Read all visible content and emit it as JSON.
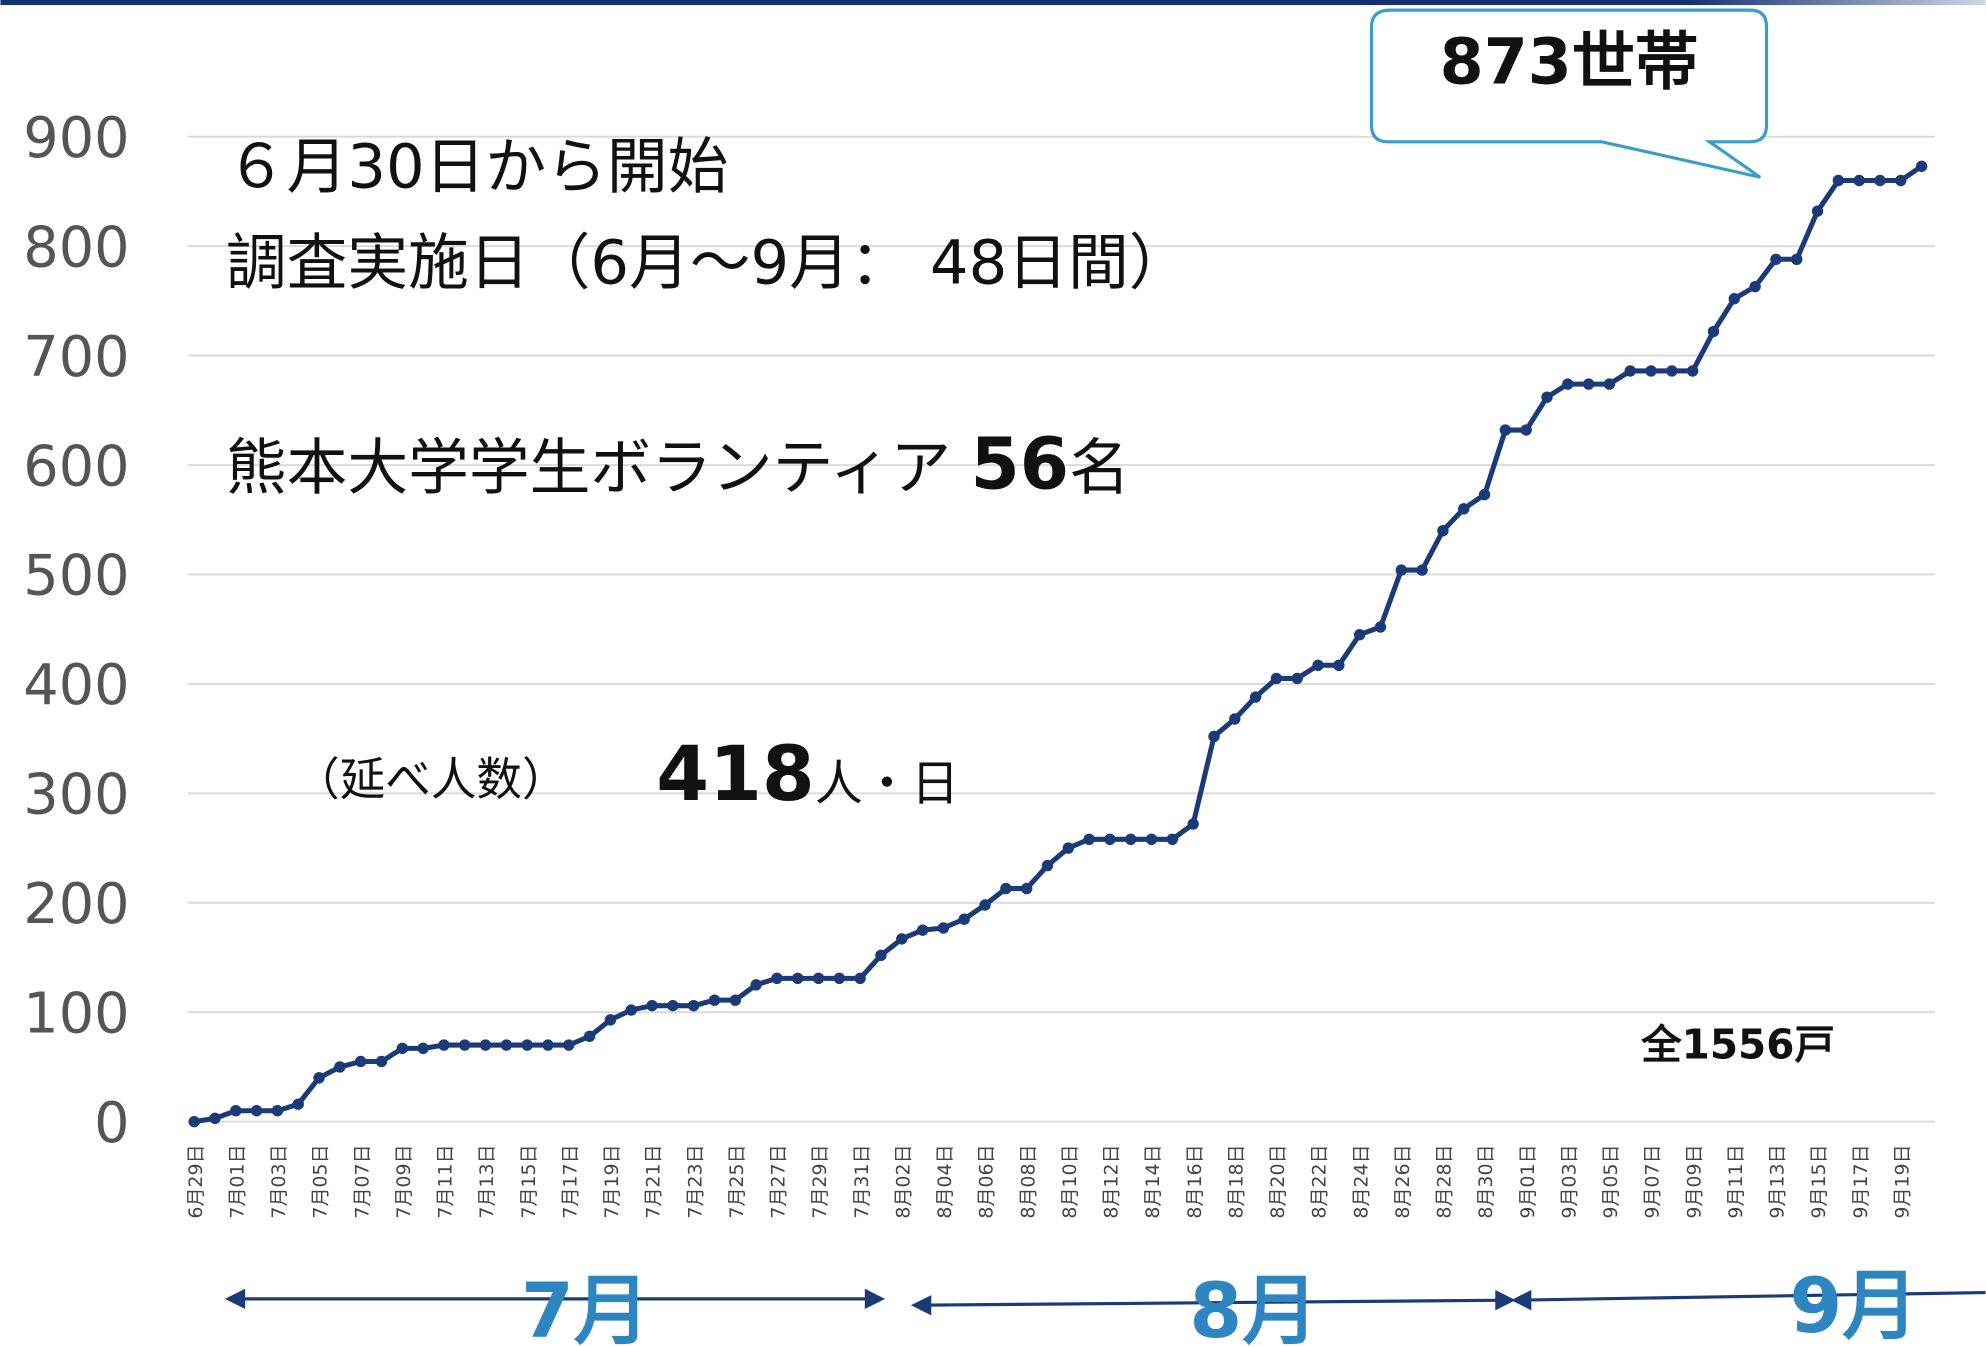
{
  "chart_data": {
    "type": "line",
    "categories": [
      "6月29日",
      null,
      "7月01日",
      null,
      "7月03日",
      null,
      "7月05日",
      null,
      "7月07日",
      null,
      "7月09日",
      null,
      "7月11日",
      null,
      "7月13日",
      null,
      "7月15日",
      null,
      "7月17日",
      null,
      "7月19日",
      null,
      "7月21日",
      null,
      "7月23日",
      null,
      "7月25日",
      null,
      "7月27日",
      null,
      "7月29日",
      null,
      "7月31日",
      null,
      "8月02日",
      null,
      "8月04日",
      null,
      "8月06日",
      null,
      "8月08日",
      null,
      "8月10日",
      null,
      "8月12日",
      null,
      "8月14日",
      null,
      "8月16日",
      null,
      "8月18日",
      null,
      "8月20日",
      null,
      "8月22日",
      null,
      "8月24日",
      null,
      "8月26日",
      null,
      "8月28日",
      null,
      "8月30日",
      null,
      "9月01日",
      null,
      "9月03日",
      null,
      "9月05日",
      null,
      "9月07日",
      null,
      "9月09日",
      null,
      "9月11日",
      null,
      "9月13日",
      null,
      "9月15日",
      null,
      "9月17日",
      null,
      "9月19日",
      null
    ],
    "values": [
      0,
      3,
      10,
      10,
      10,
      16,
      40,
      50,
      55,
      55,
      67,
      67,
      70,
      70,
      70,
      70,
      70,
      70,
      70,
      78,
      93,
      102,
      106,
      106,
      106,
      111,
      111,
      125,
      131,
      131,
      131,
      131,
      131,
      152,
      167,
      175,
      177,
      185,
      198,
      213,
      213,
      234,
      250,
      258,
      258,
      258,
      258,
      258,
      272,
      352,
      368,
      388,
      405,
      405,
      417,
      417,
      445,
      452,
      504,
      504,
      540,
      560,
      573,
      632,
      632,
      662,
      674,
      674,
      674,
      686,
      686,
      686,
      686,
      722,
      752,
      763,
      788,
      788,
      832,
      860,
      860,
      860,
      860,
      873
    ],
    "color": "#1b3a78",
    "ylim": [
      0,
      900
    ],
    "yticks": [
      0,
      100,
      200,
      300,
      400,
      500,
      600,
      700,
      800,
      900
    ],
    "grid": true,
    "annotations": {
      "start": "６月30日から開始",
      "survey": "調査実施日（6月～9月：  48日間）",
      "volunteer": {
        "text": "熊本大学学生ボランティア ",
        "number": "56",
        "unit": "名"
      },
      "persons": {
        "text": "（延べ人数）",
        "number": "418",
        "unit": "人・日"
      },
      "total": "全1556戸",
      "callout": "873世帯"
    },
    "month_labels": [
      "7月",
      "8月",
      "9月"
    ]
  }
}
